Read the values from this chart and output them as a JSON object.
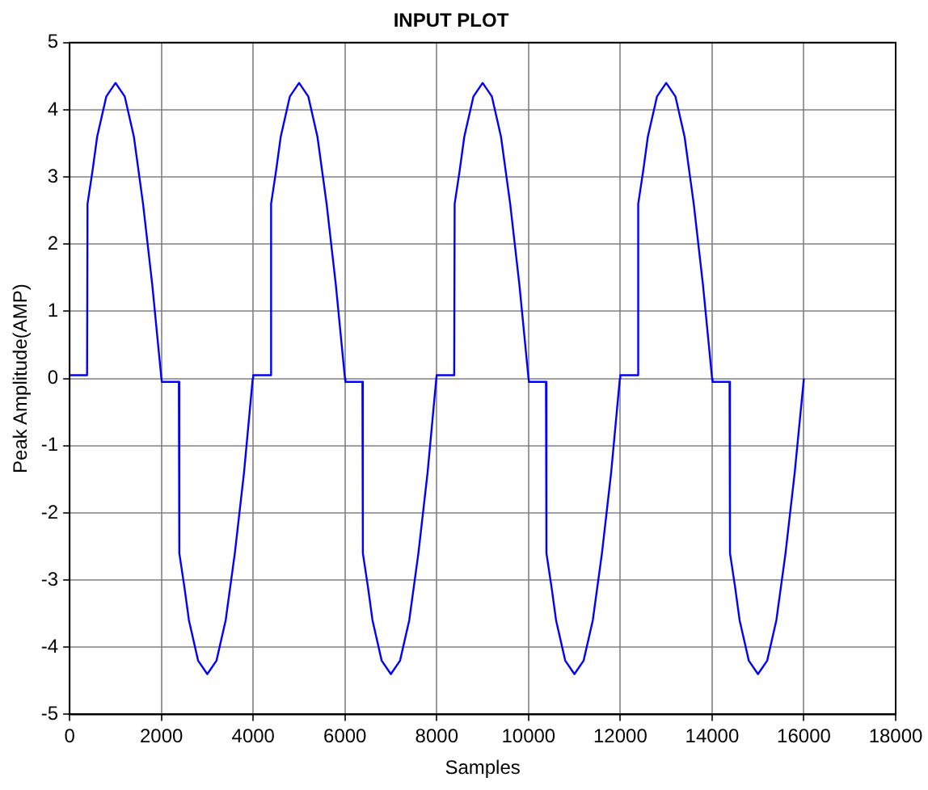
{
  "chart_data": {
    "type": "line",
    "title": "INPUT PLOT",
    "xlabel": "Samples",
    "ylabel": "Peak Amplitude(AMP)",
    "xlim": [
      0,
      18000
    ],
    "xticks": [
      0,
      2000,
      4000,
      6000,
      8000,
      10000,
      12000,
      14000,
      16000,
      18000
    ],
    "ylim": [
      -5,
      5
    ],
    "yticks": [
      -5,
      -4,
      -3,
      -2,
      -1,
      0,
      1,
      2,
      3,
      4,
      5
    ],
    "grid": true,
    "legend": false,
    "marker": "none",
    "line_style": "solid",
    "series": [
      {
        "color": "#0000ff",
        "x": [
          0,
          380,
          390,
          500,
          600,
          800,
          1000,
          1200,
          1400,
          1600,
          1800,
          2000,
          2010,
          2380,
          2390,
          2500,
          2600,
          2800,
          3000,
          3200,
          3400,
          3600,
          3800,
          3990,
          4000,
          4380,
          4390,
          4500,
          4600,
          4800,
          5000,
          5200,
          5400,
          5600,
          5800,
          6000,
          6010,
          6380,
          6390,
          6500,
          6600,
          6800,
          7000,
          7200,
          7400,
          7600,
          7800,
          7990,
          8000,
          8380,
          8390,
          8500,
          8600,
          8800,
          9000,
          9200,
          9400,
          9600,
          9800,
          10000,
          10010,
          10380,
          10390,
          10500,
          10600,
          10800,
          11000,
          11200,
          11400,
          11600,
          11800,
          11990,
          12000,
          12380,
          12390,
          12500,
          12600,
          12800,
          13000,
          13200,
          13400,
          13600,
          13800,
          14000,
          14010,
          14380,
          14390,
          14500,
          14600,
          14800,
          15000,
          15200,
          15400,
          15600,
          15800,
          16000
        ],
        "values": [
          0.05,
          0.05,
          2.6,
          3.1,
          3.6,
          4.2,
          4.4,
          4.2,
          3.6,
          2.6,
          1.4,
          0,
          -0.05,
          -0.05,
          -2.6,
          -3.1,
          -3.6,
          -4.2,
          -4.4,
          -4.2,
          -3.6,
          -2.6,
          -1.4,
          0,
          0.05,
          0.05,
          2.6,
          3.1,
          3.6,
          4.2,
          4.4,
          4.2,
          3.6,
          2.6,
          1.4,
          0,
          -0.05,
          -0.05,
          -2.6,
          -3.1,
          -3.6,
          -4.2,
          -4.4,
          -4.2,
          -3.6,
          -2.6,
          -1.4,
          0,
          0.05,
          0.05,
          2.6,
          3.1,
          3.6,
          4.2,
          4.4,
          4.2,
          3.6,
          2.6,
          1.4,
          0,
          -0.05,
          -0.05,
          -2.6,
          -3.1,
          -3.6,
          -4.2,
          -4.4,
          -4.2,
          -3.6,
          -2.6,
          -1.4,
          0,
          0.05,
          0.05,
          2.6,
          3.1,
          3.6,
          4.2,
          4.4,
          4.2,
          3.6,
          2.6,
          1.4,
          0,
          -0.05,
          -0.05,
          -2.6,
          -3.1,
          -3.6,
          -4.2,
          -4.4,
          -4.2,
          -3.6,
          -2.6,
          -1.4,
          0
        ]
      }
    ]
  }
}
